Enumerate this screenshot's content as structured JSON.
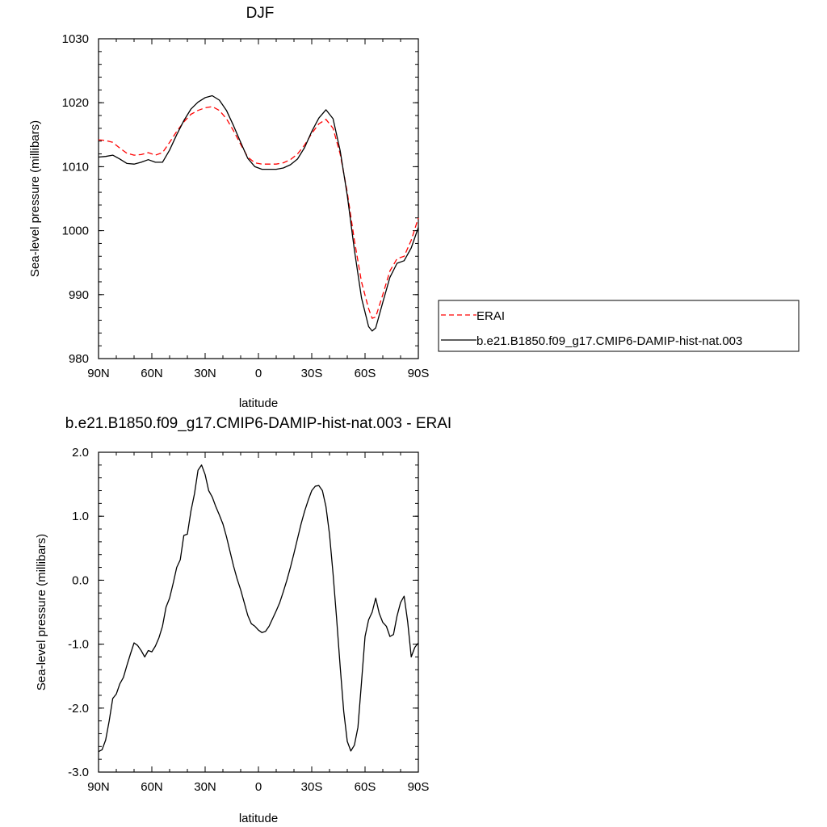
{
  "chart_data": [
    {
      "type": "line",
      "title": "DJF",
      "xlabel": "latitude",
      "ylabel": "Sea-level pressure (millibars)",
      "xlim": [
        90,
        -90
      ],
      "ylim": [
        980,
        1030
      ],
      "xticks": [
        90,
        60,
        30,
        0,
        -30,
        -60,
        -90
      ],
      "xtick_labels": [
        "90N",
        "60N",
        "30N",
        "0",
        "30S",
        "60S",
        "90S"
      ],
      "yticks": [
        980,
        990,
        1000,
        1010,
        1020,
        1030
      ],
      "ytick_labels": [
        "980",
        "990",
        "1000",
        "1010",
        "1020",
        "1030"
      ],
      "grid": false,
      "legend": "right",
      "series": [
        {
          "name": "ERAI",
          "color": "#ff0000",
          "dashed": true,
          "x": [
            90,
            86,
            82,
            78,
            74,
            70,
            66,
            62,
            58,
            54,
            50,
            46,
            42,
            38,
            34,
            30,
            26,
            22,
            18,
            14,
            10,
            6,
            2,
            -2,
            -6,
            -10,
            -14,
            -18,
            -22,
            -26,
            -30,
            -34,
            -38,
            -42,
            -46,
            -50,
            -54,
            -58,
            -62,
            -64,
            -66,
            -70,
            -74,
            -78,
            -82,
            -86,
            -90
          ],
          "values": [
            1014.2,
            1014.1,
            1013.8,
            1012.9,
            1012.1,
            1011.8,
            1011.9,
            1012.2,
            1011.8,
            1012.2,
            1013.8,
            1015.5,
            1017.0,
            1018.2,
            1018.8,
            1019.2,
            1019.4,
            1018.8,
            1017.5,
            1015.6,
            1013.5,
            1011.5,
            1010.6,
            1010.4,
            1010.4,
            1010.4,
            1010.6,
            1011.1,
            1012.0,
            1013.4,
            1015.2,
            1016.7,
            1017.4,
            1016.0,
            1012.0,
            1006.0,
            998.5,
            992.0,
            987.8,
            986.3,
            986.5,
            990.0,
            993.7,
            995.6,
            996.0,
            998.5,
            1002.0
          ]
        },
        {
          "name": "b.e21.B1850.f09_g17.CMIP6-DAMIP-hist-nat.003",
          "color": "#000000",
          "dashed": false,
          "x": [
            90,
            86,
            82,
            78,
            74,
            70,
            66,
            62,
            58,
            54,
            50,
            46,
            42,
            38,
            34,
            30,
            26,
            22,
            18,
            14,
            10,
            6,
            2,
            -2,
            -6,
            -10,
            -14,
            -18,
            -22,
            -26,
            -30,
            -34,
            -38,
            -42,
            -46,
            -50,
            -54,
            -58,
            -62,
            -64,
            -66,
            -70,
            -74,
            -78,
            -82,
            -86,
            -90
          ],
          "values": [
            1011.5,
            1011.6,
            1011.8,
            1011.2,
            1010.5,
            1010.4,
            1010.7,
            1011.1,
            1010.7,
            1010.7,
            1012.6,
            1015.0,
            1017.2,
            1019.0,
            1020.1,
            1020.8,
            1021.1,
            1020.4,
            1018.8,
            1016.4,
            1013.8,
            1011.3,
            1010.0,
            1009.6,
            1009.6,
            1009.6,
            1009.8,
            1010.3,
            1011.2,
            1013.0,
            1015.5,
            1017.6,
            1018.9,
            1017.5,
            1012.5,
            1005.5,
            997.0,
            989.5,
            985.0,
            984.3,
            984.8,
            988.8,
            992.7,
            994.9,
            995.3,
            997.3,
            1000.5
          ]
        }
      ]
    },
    {
      "type": "line",
      "title": "b.e21.B1850.f09_g17.CMIP6-DAMIP-hist-nat.003 - ERAI",
      "xlabel": "latitude",
      "ylabel": "Sea-level pressure (millibars)",
      "xlim": [
        90,
        -90
      ],
      "ylim": [
        -3.0,
        2.0
      ],
      "xticks": [
        90,
        60,
        30,
        0,
        -30,
        -60,
        -90
      ],
      "xtick_labels": [
        "90N",
        "60N",
        "30N",
        "0",
        "30S",
        "60S",
        "90S"
      ],
      "yticks": [
        -3.0,
        -2.0,
        -1.0,
        0.0,
        1.0,
        2.0
      ],
      "ytick_labels": [
        "-3.0",
        "-2.0",
        "-1.0",
        "0.0",
        "1.0",
        "2.0"
      ],
      "grid": false,
      "series": [
        {
          "color": "#000000",
          "dashed": false,
          "x": [
            90,
            88,
            86,
            84,
            82,
            80,
            78,
            76,
            74,
            72,
            70,
            68,
            66,
            64,
            62,
            60,
            58,
            56,
            54,
            52,
            50,
            48,
            46,
            44,
            42,
            40,
            38,
            36,
            34,
            32,
            30,
            28,
            26,
            24,
            22,
            20,
            18,
            16,
            14,
            12,
            10,
            8,
            6,
            4,
            2,
            0,
            -2,
            -4,
            -6,
            -8,
            -10,
            -12,
            -14,
            -16,
            -18,
            -20,
            -22,
            -24,
            -26,
            -28,
            -30,
            -32,
            -34,
            -36,
            -38,
            -40,
            -42,
            -44,
            -46,
            -48,
            -50,
            -52,
            -54,
            -56,
            -58,
            -60,
            -62,
            -64,
            -66,
            -68,
            -70,
            -72,
            -74,
            -76,
            -78,
            -80,
            -82,
            -84,
            -86,
            -88,
            -90
          ],
          "values": [
            -2.68,
            -2.65,
            -2.5,
            -2.2,
            -1.85,
            -1.78,
            -1.62,
            -1.52,
            -1.33,
            -1.15,
            -0.98,
            -1.02,
            -1.1,
            -1.2,
            -1.1,
            -1.12,
            -1.03,
            -0.9,
            -0.72,
            -0.42,
            -0.28,
            -0.05,
            0.2,
            0.32,
            0.7,
            0.72,
            1.08,
            1.35,
            1.72,
            1.8,
            1.65,
            1.4,
            1.3,
            1.15,
            1.02,
            0.88,
            0.68,
            0.45,
            0.22,
            0.02,
            -0.15,
            -0.35,
            -0.55,
            -0.68,
            -0.72,
            -0.78,
            -0.82,
            -0.8,
            -0.72,
            -0.6,
            -0.48,
            -0.35,
            -0.18,
            0.0,
            0.2,
            0.42,
            0.65,
            0.88,
            1.08,
            1.25,
            1.4,
            1.47,
            1.48,
            1.4,
            1.15,
            0.72,
            0.1,
            -0.6,
            -1.35,
            -2.05,
            -2.52,
            -2.67,
            -2.58,
            -2.3,
            -1.6,
            -0.88,
            -0.62,
            -0.5,
            -0.28,
            -0.52,
            -0.66,
            -0.72,
            -0.88,
            -0.85,
            -0.56,
            -0.35,
            -0.25,
            -0.65,
            -1.2,
            -1.05,
            -0.98
          ]
        }
      ]
    }
  ]
}
